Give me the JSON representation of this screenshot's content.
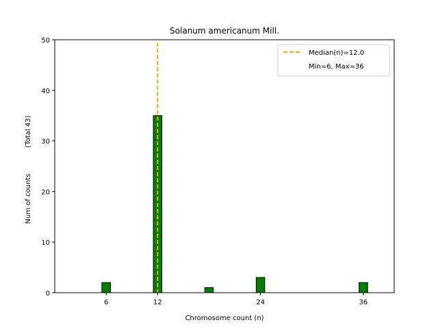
{
  "chart_data": {
    "type": "bar",
    "title": "Solanum americanum Mill.",
    "xlabel": "Chromosome count (n)",
    "ylabel": "Num of counts",
    "ylabel_total": "(Total 43)",
    "x": [
      6,
      12,
      18,
      24,
      36
    ],
    "values": [
      2,
      35,
      1,
      3,
      2
    ],
    "xticks": [
      6,
      12,
      24,
      36
    ],
    "yticks": [
      0,
      10,
      20,
      30,
      40,
      50
    ],
    "xlim": [
      0,
      39.6
    ],
    "ylim": [
      0,
      50
    ],
    "bar_width": 1,
    "median_line": 12.0,
    "legend": {
      "placement": "top-right",
      "median_label": "Median(n)=12.0",
      "minmax_label": "Min=6, Max=36"
    },
    "colors": {
      "bar": "#008000",
      "bar_edge": "#000000",
      "median": "#FFA500"
    },
    "grid": false
  }
}
